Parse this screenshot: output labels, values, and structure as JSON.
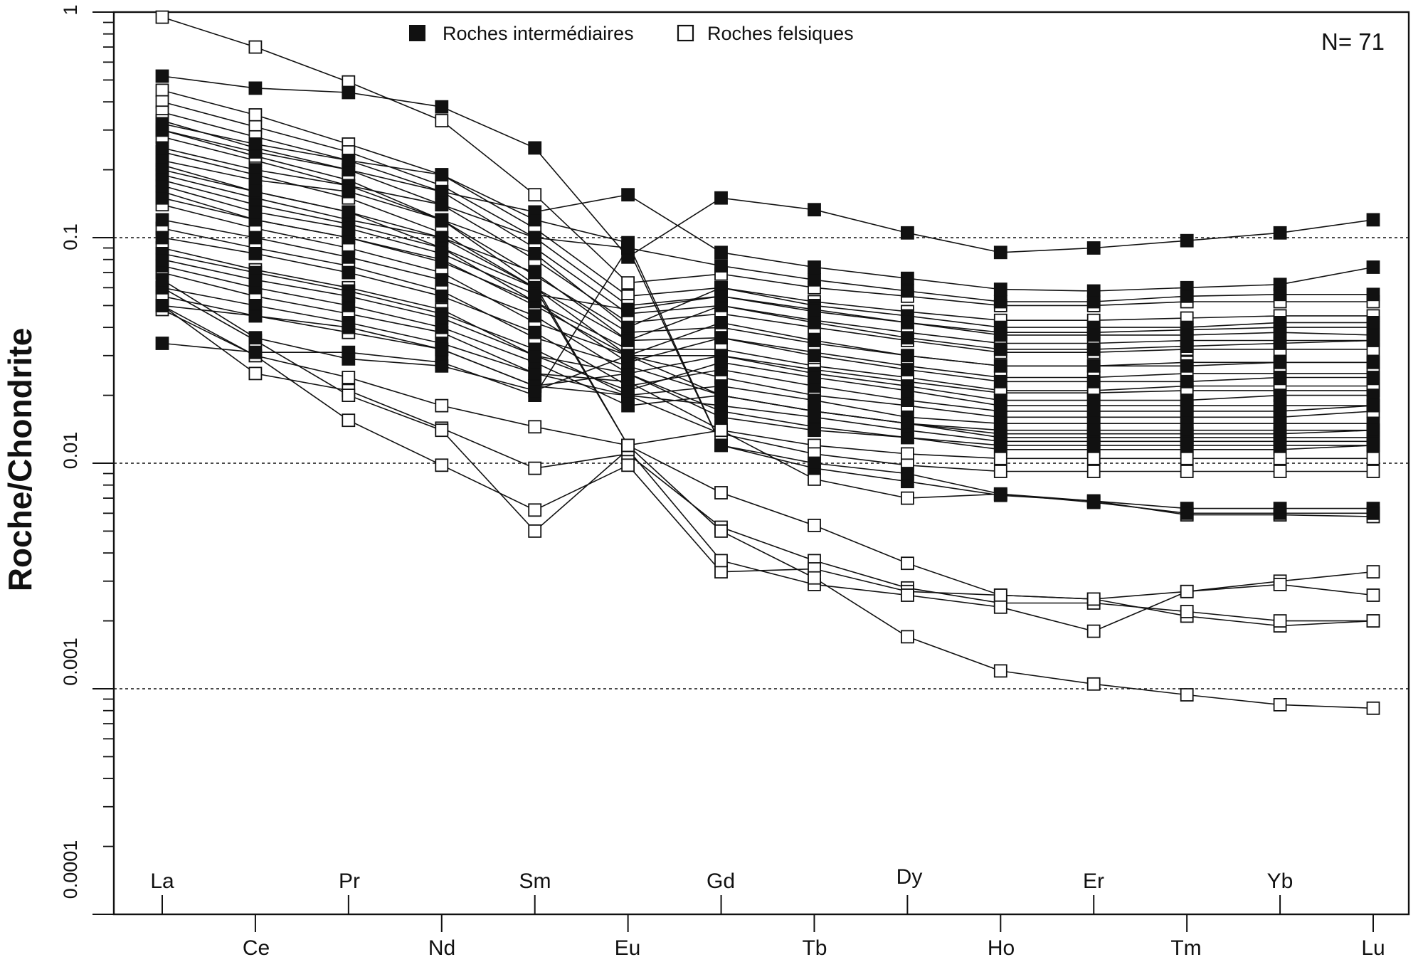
{
  "chart_data": {
    "type": "line",
    "ylabel": "Roche/Chondrite",
    "yscale": "log",
    "ylim": [
      0.0001,
      1
    ],
    "grid_dotted_at": [
      0.1,
      0.01,
      0.001
    ],
    "yticks": [
      "1",
      "0.1",
      "0.01",
      "0.001",
      "0.0001"
    ],
    "annotation": "N= 71",
    "legend": {
      "position": "top-center",
      "entries": [
        {
          "label": "Roches intermédiaires",
          "marker": "filled-square"
        },
        {
          "label": "Roches felsiques",
          "marker": "open-square"
        }
      ]
    },
    "categories": [
      "La",
      "Ce",
      "Pr",
      "Nd",
      "Sm",
      "Eu",
      "Gd",
      "Tb",
      "Dy",
      "Ho",
      "Er",
      "Tm",
      "Yb",
      "Lu"
    ],
    "category_label_rows": {
      "upper": [
        "La",
        "Pr",
        "Sm",
        "Gd",
        "Dy",
        "Er",
        "Yb"
      ],
      "lower": [
        "Ce",
        "Nd",
        "Eu",
        "Tb",
        "Ho",
        "Tm",
        "Lu"
      ]
    },
    "series": [
      {
        "type": "intermediaire",
        "values": [
          0.52,
          0.46,
          0.44,
          0.38,
          0.25,
          0.082,
          0.15,
          0.133,
          0.105,
          0.086,
          0.09,
          0.097,
          0.105,
          0.12
        ]
      },
      {
        "type": "intermediaire",
        "values": [
          0.3,
          0.24,
          0.2,
          0.16,
          0.13,
          0.155,
          0.086,
          0.074,
          0.066,
          0.059,
          0.058,
          0.06,
          0.062,
          0.074
        ]
      },
      {
        "type": "intermediaire",
        "values": [
          0.25,
          0.2,
          0.17,
          0.14,
          0.1,
          0.09,
          0.075,
          0.065,
          0.058,
          0.052,
          0.052,
          0.055,
          0.056,
          0.056
        ]
      },
      {
        "type": "intermediaire",
        "values": [
          0.22,
          0.18,
          0.16,
          0.12,
          0.085,
          0.04,
          0.06,
          0.05,
          0.045,
          0.04,
          0.04,
          0.04,
          0.042,
          0.042
        ]
      },
      {
        "type": "intermediaire",
        "values": [
          0.2,
          0.16,
          0.13,
          0.1,
          0.07,
          0.035,
          0.05,
          0.042,
          0.036,
          0.032,
          0.032,
          0.033,
          0.034,
          0.035
        ]
      },
      {
        "type": "intermediaire",
        "values": [
          0.18,
          0.14,
          0.115,
          0.09,
          0.06,
          0.03,
          0.042,
          0.035,
          0.03,
          0.027,
          0.027,
          0.027,
          0.028,
          0.028
        ]
      },
      {
        "type": "intermediaire",
        "values": [
          0.15,
          0.12,
          0.1,
          0.078,
          0.052,
          0.028,
          0.036,
          0.03,
          0.026,
          0.023,
          0.023,
          0.023,
          0.024,
          0.024
        ]
      },
      {
        "type": "intermediaire",
        "values": [
          0.12,
          0.1,
          0.082,
          0.065,
          0.045,
          0.025,
          0.03,
          0.025,
          0.022,
          0.019,
          0.019,
          0.019,
          0.02,
          0.02
        ]
      },
      {
        "type": "intermediaire",
        "values": [
          0.1,
          0.085,
          0.07,
          0.055,
          0.038,
          0.022,
          0.026,
          0.022,
          0.019,
          0.017,
          0.017,
          0.017,
          0.017,
          0.018
        ]
      },
      {
        "type": "intermediaire",
        "values": [
          0.085,
          0.07,
          0.058,
          0.046,
          0.032,
          0.02,
          0.022,
          0.019,
          0.016,
          0.015,
          0.015,
          0.015,
          0.015,
          0.015
        ]
      },
      {
        "type": "intermediaire",
        "values": [
          0.075,
          0.06,
          0.05,
          0.04,
          0.028,
          0.018,
          0.02,
          0.017,
          0.015,
          0.013,
          0.013,
          0.013,
          0.013,
          0.013
        ]
      },
      {
        "type": "intermediaire",
        "values": [
          0.06,
          0.05,
          0.042,
          0.034,
          0.025,
          0.02,
          0.018,
          0.016,
          0.014,
          0.0125,
          0.0125,
          0.0125,
          0.0125,
          0.0125
        ]
      },
      {
        "type": "intermediaire",
        "values": [
          0.05,
          0.045,
          0.04,
          0.032,
          0.022,
          0.025,
          0.016,
          0.014,
          0.013,
          0.012,
          0.012,
          0.012,
          0.012,
          0.012
        ]
      },
      {
        "type": "intermediaire",
        "values": [
          0.034,
          0.031,
          0.031,
          0.028,
          0.02,
          0.09,
          0.012,
          0.0095,
          0.0083,
          0.0072,
          0.0068,
          0.0063,
          0.0063,
          0.0063
        ]
      },
      {
        "type": "intermediaire",
        "values": [
          0.32,
          0.26,
          0.22,
          0.19,
          0.12,
          0.095,
          0.012,
          0.01,
          0.009,
          0.0073,
          0.0067,
          0.006,
          0.006,
          0.006
        ]
      },
      {
        "type": "intermediaire",
        "values": [
          0.17,
          0.13,
          0.11,
          0.085,
          0.056,
          0.048,
          0.055,
          0.048,
          0.042,
          0.037,
          0.037,
          0.037,
          0.038,
          0.037
        ]
      },
      {
        "type": "intermediaire",
        "values": [
          0.08,
          0.065,
          0.055,
          0.044,
          0.03,
          0.021,
          0.028,
          0.024,
          0.021,
          0.018,
          0.018,
          0.018,
          0.018,
          0.018
        ]
      },
      {
        "type": "intermediaire",
        "values": [
          0.065,
          0.036,
          0.029,
          0.027,
          0.021,
          0.03,
          0.02,
          0.017,
          0.015,
          0.014,
          0.014,
          0.014,
          0.014,
          0.014
        ]
      },
      {
        "type": "felsique",
        "values": [
          0.95,
          0.7,
          0.49,
          0.33,
          0.155,
          0.063,
          0.069,
          0.06,
          0.055,
          0.05,
          0.05,
          0.052,
          0.052,
          0.052
        ]
      },
      {
        "type": "felsique",
        "values": [
          0.45,
          0.35,
          0.26,
          0.19,
          0.11,
          0.055,
          0.06,
          0.052,
          0.047,
          0.043,
          0.043,
          0.044,
          0.045,
          0.045
        ]
      },
      {
        "type": "felsique",
        "values": [
          0.4,
          0.31,
          0.24,
          0.17,
          0.1,
          0.05,
          0.055,
          0.047,
          0.042,
          0.038,
          0.038,
          0.039,
          0.04,
          0.04
        ]
      },
      {
        "type": "felsique",
        "values": [
          0.36,
          0.28,
          0.22,
          0.16,
          0.09,
          0.046,
          0.05,
          0.043,
          0.038,
          0.034,
          0.034,
          0.035,
          0.035,
          0.035
        ]
      },
      {
        "type": "felsique",
        "values": [
          0.33,
          0.25,
          0.2,
          0.14,
          0.08,
          0.042,
          0.046,
          0.04,
          0.035,
          0.031,
          0.031,
          0.032,
          0.032,
          0.032
        ]
      },
      {
        "type": "felsique",
        "values": [
          0.28,
          0.22,
          0.17,
          0.12,
          0.068,
          0.038,
          0.04,
          0.034,
          0.03,
          0.027,
          0.027,
          0.028,
          0.028,
          0.028
        ]
      },
      {
        "type": "felsique",
        "values": [
          0.24,
          0.19,
          0.15,
          0.105,
          0.06,
          0.035,
          0.036,
          0.031,
          0.027,
          0.024,
          0.024,
          0.025,
          0.025,
          0.025
        ]
      },
      {
        "type": "felsique",
        "values": [
          0.21,
          0.16,
          0.13,
          0.09,
          0.052,
          0.032,
          0.032,
          0.027,
          0.024,
          0.021,
          0.021,
          0.022,
          0.022,
          0.022
        ]
      },
      {
        "type": "felsique",
        "values": [
          0.14,
          0.11,
          0.09,
          0.07,
          0.042,
          0.03,
          0.024,
          0.02,
          0.018,
          0.016,
          0.016,
          0.016,
          0.016,
          0.017
        ]
      },
      {
        "type": "felsique",
        "values": [
          0.11,
          0.09,
          0.075,
          0.058,
          0.036,
          0.027,
          0.02,
          0.017,
          0.015,
          0.0135,
          0.0135,
          0.0135,
          0.0135,
          0.014
        ]
      },
      {
        "type": "felsique",
        "values": [
          0.09,
          0.072,
          0.06,
          0.048,
          0.03,
          0.025,
          0.017,
          0.0145,
          0.013,
          0.0115,
          0.0115,
          0.0115,
          0.0115,
          0.012
        ]
      },
      {
        "type": "felsique",
        "values": [
          0.07,
          0.055,
          0.046,
          0.038,
          0.025,
          0.023,
          0.014,
          0.012,
          0.011,
          0.0105,
          0.0105,
          0.0105,
          0.0105,
          0.0105
        ]
      },
      {
        "type": "felsique",
        "values": [
          0.055,
          0.045,
          0.038,
          0.032,
          0.022,
          0.02,
          0.0135,
          0.011,
          0.0098,
          0.0092,
          0.0092,
          0.0092,
          0.0092,
          0.0092
        ]
      },
      {
        "type": "felsique",
        "values": [
          0.048,
          0.03,
          0.024,
          0.018,
          0.0145,
          0.012,
          0.0074,
          0.0053,
          0.0036,
          0.0026,
          0.0025,
          0.0021,
          0.0019,
          0.002
        ]
      },
      {
        "type": "felsique",
        "values": [
          0.05,
          0.025,
          0.021,
          0.0143,
          0.0095,
          0.011,
          0.0052,
          0.0037,
          0.0028,
          0.0024,
          0.0024,
          0.0022,
          0.002,
          0.002
        ]
      },
      {
        "type": "felsique",
        "values": [
          0.05,
          0.03,
          0.0155,
          0.0098,
          0.0062,
          0.0098,
          0.0033,
          0.0034,
          0.0027,
          0.0026,
          0.0025,
          0.0027,
          0.003,
          0.0033
        ]
      },
      {
        "type": "felsique",
        "values": [
          0.06,
          0.035,
          0.02,
          0.014,
          0.005,
          0.0115,
          0.0037,
          0.0029,
          0.0026,
          0.0023,
          0.0018,
          0.0027,
          0.0029,
          0.0026
        ]
      },
      {
        "type": "felsique",
        "values": [
          0.3,
          0.23,
          0.18,
          0.12,
          0.062,
          0.012,
          0.005,
          0.0031,
          0.0017,
          0.0012,
          0.00105,
          0.00094,
          0.00085,
          0.00082
        ]
      },
      {
        "type": "felsique",
        "values": [
          0.19,
          0.15,
          0.12,
          0.1,
          0.06,
          0.012,
          0.014,
          0.0085,
          0.007,
          0.0073,
          0.0068,
          0.0059,
          0.0059,
          0.0058
        ]
      },
      {
        "type": "felsique",
        "values": [
          0.16,
          0.12,
          0.1,
          0.08,
          0.05,
          0.03,
          0.03,
          0.026,
          0.023,
          0.0205,
          0.0205,
          0.021,
          0.021,
          0.021
        ]
      }
    ]
  }
}
